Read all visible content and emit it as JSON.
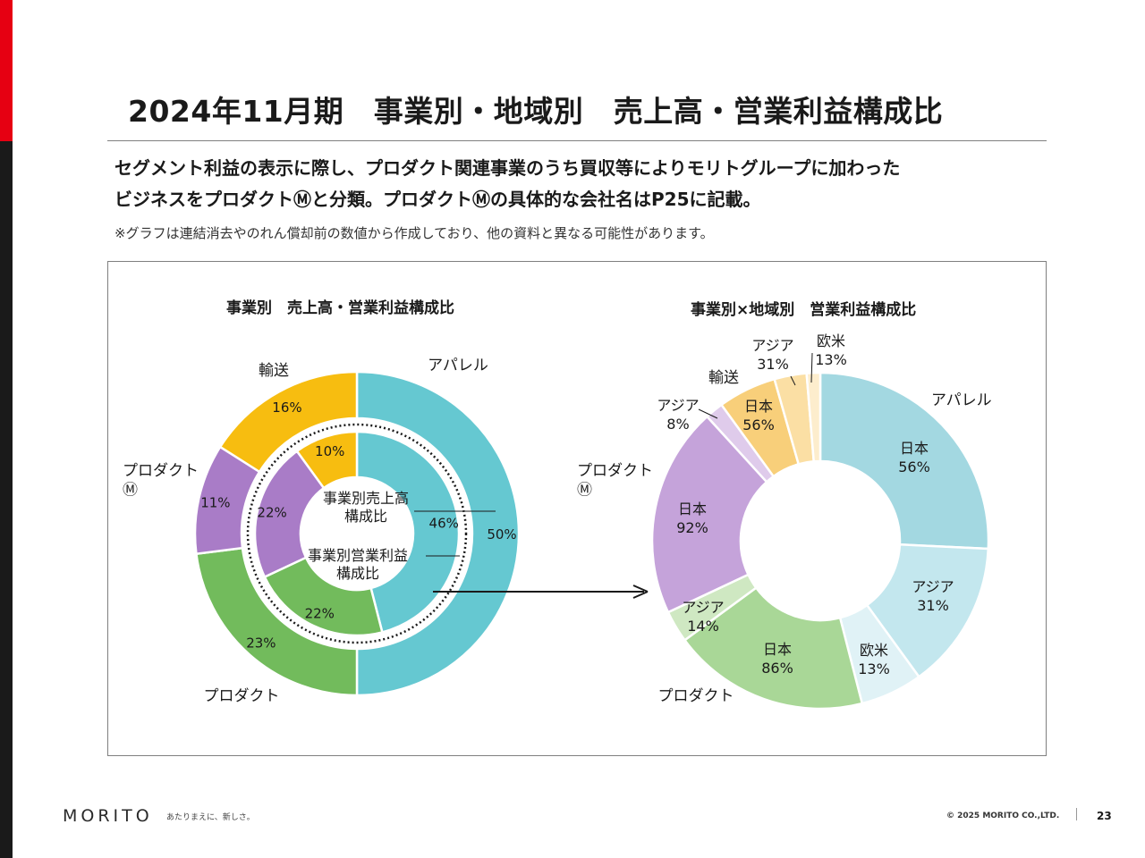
{
  "page": {
    "title": "2024年11月期　事業別・地域別　売上高・営業利益構成比",
    "lead_line1": "セグメント利益の表示に際し、プロダクト関連事業のうち買収等によりモリトグループに加わった",
    "lead_line2": "ビジネスをプロダクトⓂと分類。プロダクトⓂの具体的な会社名はP25に記載。",
    "note": "※グラフは連結消去やのれん償却前の数値から作成しており、他の資料と異なる可能性があります。"
  },
  "colors": {
    "apparel": "#65c8d1",
    "product": "#72bb5c",
    "product_m": "#a97cc7",
    "transport": "#f7bd10"
  },
  "chart_data": [
    {
      "type": "pie",
      "variant": "nested-donut",
      "title": "事業別　売上高・営業利益構成比",
      "center_label_outer": "事業別売上高\n構成比",
      "center_label_inner": "事業別営業利益\n構成比",
      "categories": [
        "アパレル",
        "プロダクト",
        "プロダクト\nⓂ",
        "輸送"
      ],
      "series": [
        {
          "name": "事業別売上高構成比",
          "ring": "outer",
          "values": [
            50,
            23,
            11,
            16
          ],
          "labels": [
            "50%",
            "23%",
            "11%",
            "16%"
          ]
        },
        {
          "name": "事業別営業利益構成比",
          "ring": "inner",
          "values": [
            46,
            22,
            22,
            10
          ],
          "labels": [
            "46%",
            "22%",
            "22%",
            "10%"
          ]
        }
      ]
    },
    {
      "type": "pie",
      "variant": "donut",
      "title": "事業別×地域別　営業利益構成比",
      "segments": [
        {
          "segment": "アパレル",
          "region": "日本",
          "value": 56,
          "label": "56%",
          "color": "#a3d8e1"
        },
        {
          "segment": "アパレル",
          "region": "アジア",
          "value": 31,
          "label": "31%",
          "color": "#c3e7ee"
        },
        {
          "segment": "アパレル",
          "region": "欧米",
          "value": 13,
          "label": "13%",
          "color": "#e0f2f6"
        },
        {
          "segment": "プロダクト",
          "region": "日本",
          "value": 86,
          "label": "86%",
          "color": "#a9d797"
        },
        {
          "segment": "プロダクト",
          "region": "アジア",
          "value": 14,
          "label": "14%",
          "color": "#cfe8c2"
        },
        {
          "segment": "プロダクト\nⓂ",
          "region": "日本",
          "value": 92,
          "label": "92%",
          "color": "#c5a3da"
        },
        {
          "segment": "プロダクト\nⓂ",
          "region": "アジア",
          "value": 8,
          "label": "8%",
          "color": "#dfcbeb"
        },
        {
          "segment": "輸送",
          "region": "日本",
          "value": 56,
          "label": "56%",
          "color": "#f8cf7a"
        },
        {
          "segment": "輸送",
          "region": "アジア",
          "value": 31,
          "label": "31%",
          "color": "#fbdfa4"
        },
        {
          "segment": "輸送",
          "region": "欧米",
          "value": 13,
          "label": "13%",
          "color": "#fdedcd"
        }
      ]
    }
  ],
  "footer": {
    "logo": "MORITO",
    "tagline": "あたりまえに、新しさ。",
    "copyright": "© 2025 MORITO CO.,LTD.",
    "page_number": "23"
  }
}
